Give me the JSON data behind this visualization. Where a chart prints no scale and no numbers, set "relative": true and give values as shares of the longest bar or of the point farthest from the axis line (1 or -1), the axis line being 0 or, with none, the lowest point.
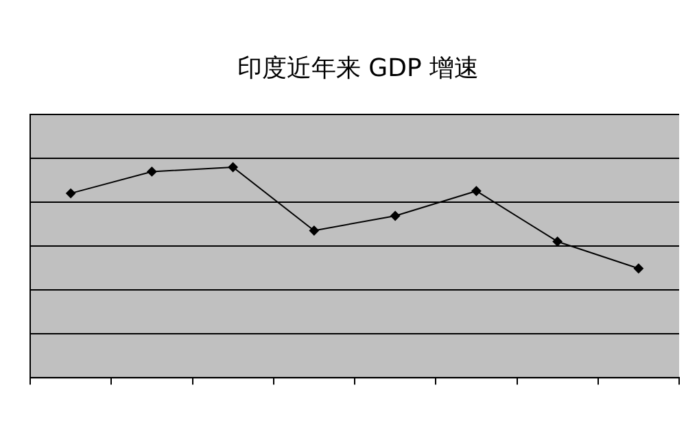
{
  "chart_data": {
    "type": "line",
    "title": "印度近年来 GDP 增速",
    "categories": [
      null,
      null,
      null,
      null,
      null,
      null,
      null,
      null
    ],
    "series": [
      {
        "color": "#000000",
        "values": [
          0.876,
          0.979,
          1,
          0.699,
          0.769,
          0.887,
          0.647,
          0.519
        ]
      }
    ],
    "relative": true,
    "grid": "y",
    "legend": false,
    "marker": "diamond",
    "line_style": "solid"
  }
}
